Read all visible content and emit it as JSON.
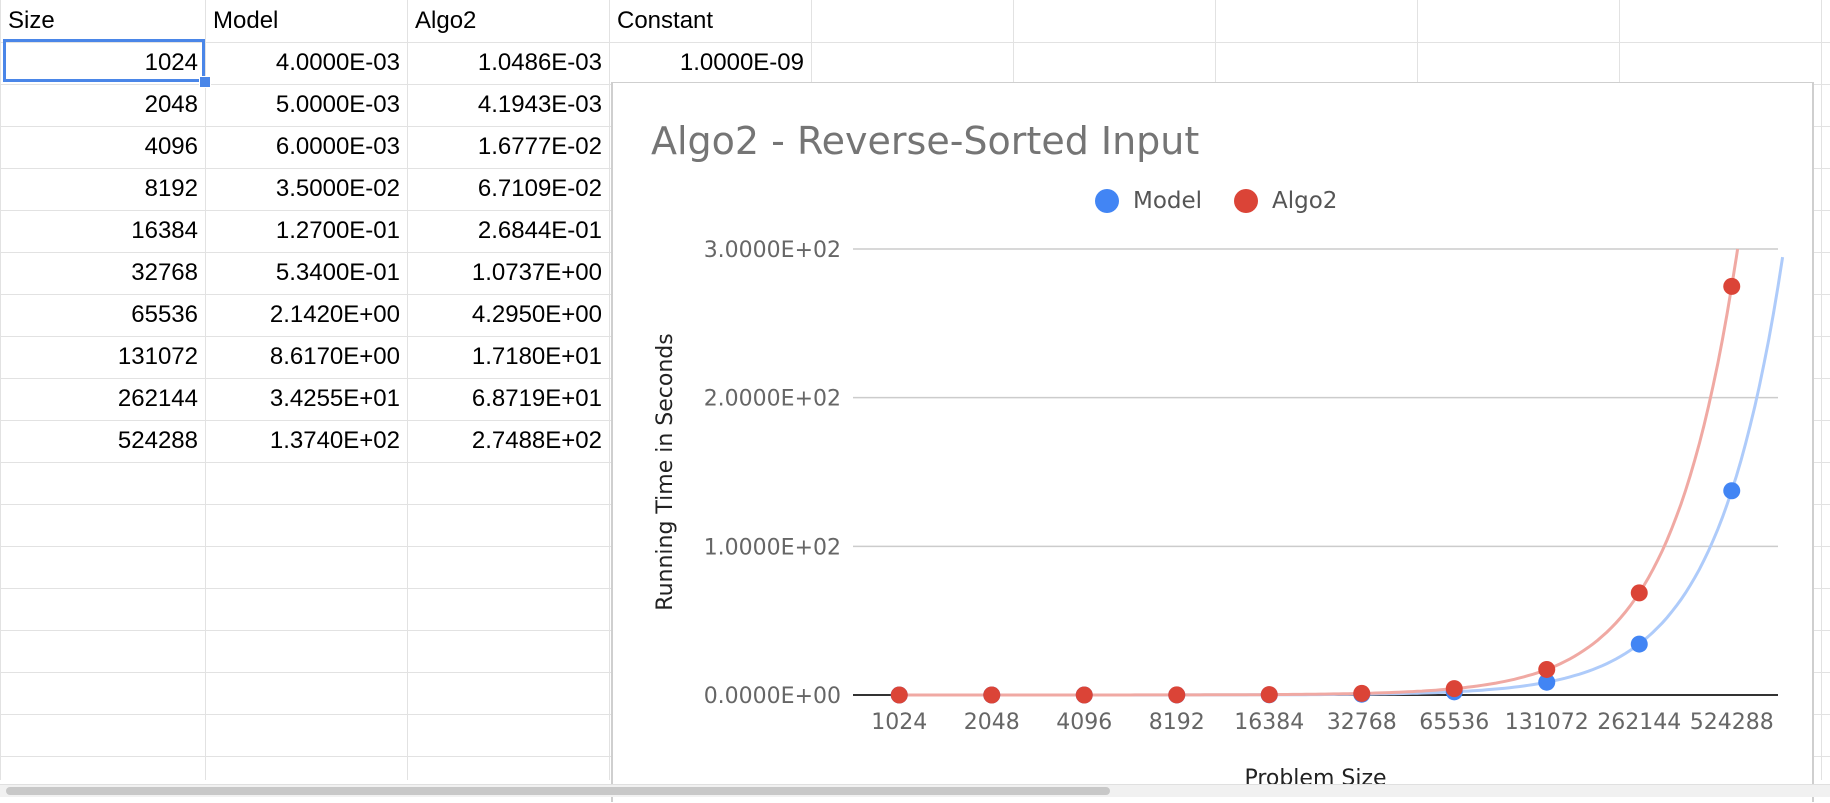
{
  "sheet": {
    "headers": [
      "Size",
      "Model",
      "Algo2",
      "Constant"
    ],
    "rows": [
      [
        "1024",
        "4.0000E-03",
        "1.0486E-03",
        "1.0000E-09"
      ],
      [
        "2048",
        "5.0000E-03",
        "4.1943E-03",
        ""
      ],
      [
        "4096",
        "6.0000E-03",
        "1.6777E-02",
        ""
      ],
      [
        "8192",
        "3.5000E-02",
        "6.7109E-02",
        ""
      ],
      [
        "16384",
        "1.2700E-01",
        "2.6844E-01",
        ""
      ],
      [
        "32768",
        "5.3400E-01",
        "1.0737E+00",
        ""
      ],
      [
        "65536",
        "2.1420E+00",
        "4.2950E+00",
        ""
      ],
      [
        "131072",
        "8.6170E+00",
        "1.7180E+01",
        ""
      ],
      [
        "262144",
        "3.4255E+01",
        "6.8719E+01",
        ""
      ],
      [
        "524288",
        "1.3740E+02",
        "2.7488E+02",
        ""
      ]
    ]
  },
  "chart_data": {
    "type": "scatter",
    "title": "Algo2 - Reverse-Sorted Input",
    "xlabel": "Problem Size",
    "ylabel": "Running Time in Seconds",
    "categories": [
      "1024",
      "2048",
      "4096",
      "8192",
      "16384",
      "32768",
      "65536",
      "131072",
      "262144",
      "524288"
    ],
    "yticks": [
      "0.0000E+00",
      "1.0000E+02",
      "2.0000E+02",
      "3.0000E+02"
    ],
    "ylim": [
      0,
      300
    ],
    "grid": true,
    "legend_position": "top",
    "trendlines": true,
    "series": [
      {
        "name": "Model",
        "color": "#4285f4",
        "trend_color": "#aecbfa",
        "values": [
          0.004,
          0.005,
          0.006,
          0.035,
          0.127,
          0.534,
          2.142,
          8.617,
          34.255,
          137.4
        ]
      },
      {
        "name": "Algo2",
        "color": "#db4437",
        "trend_color": "#f0a9a3",
        "values": [
          0.0010486,
          0.0041943,
          0.016777,
          0.067109,
          0.26844,
          1.0737,
          4.295,
          17.18,
          68.719,
          274.88
        ]
      }
    ]
  }
}
